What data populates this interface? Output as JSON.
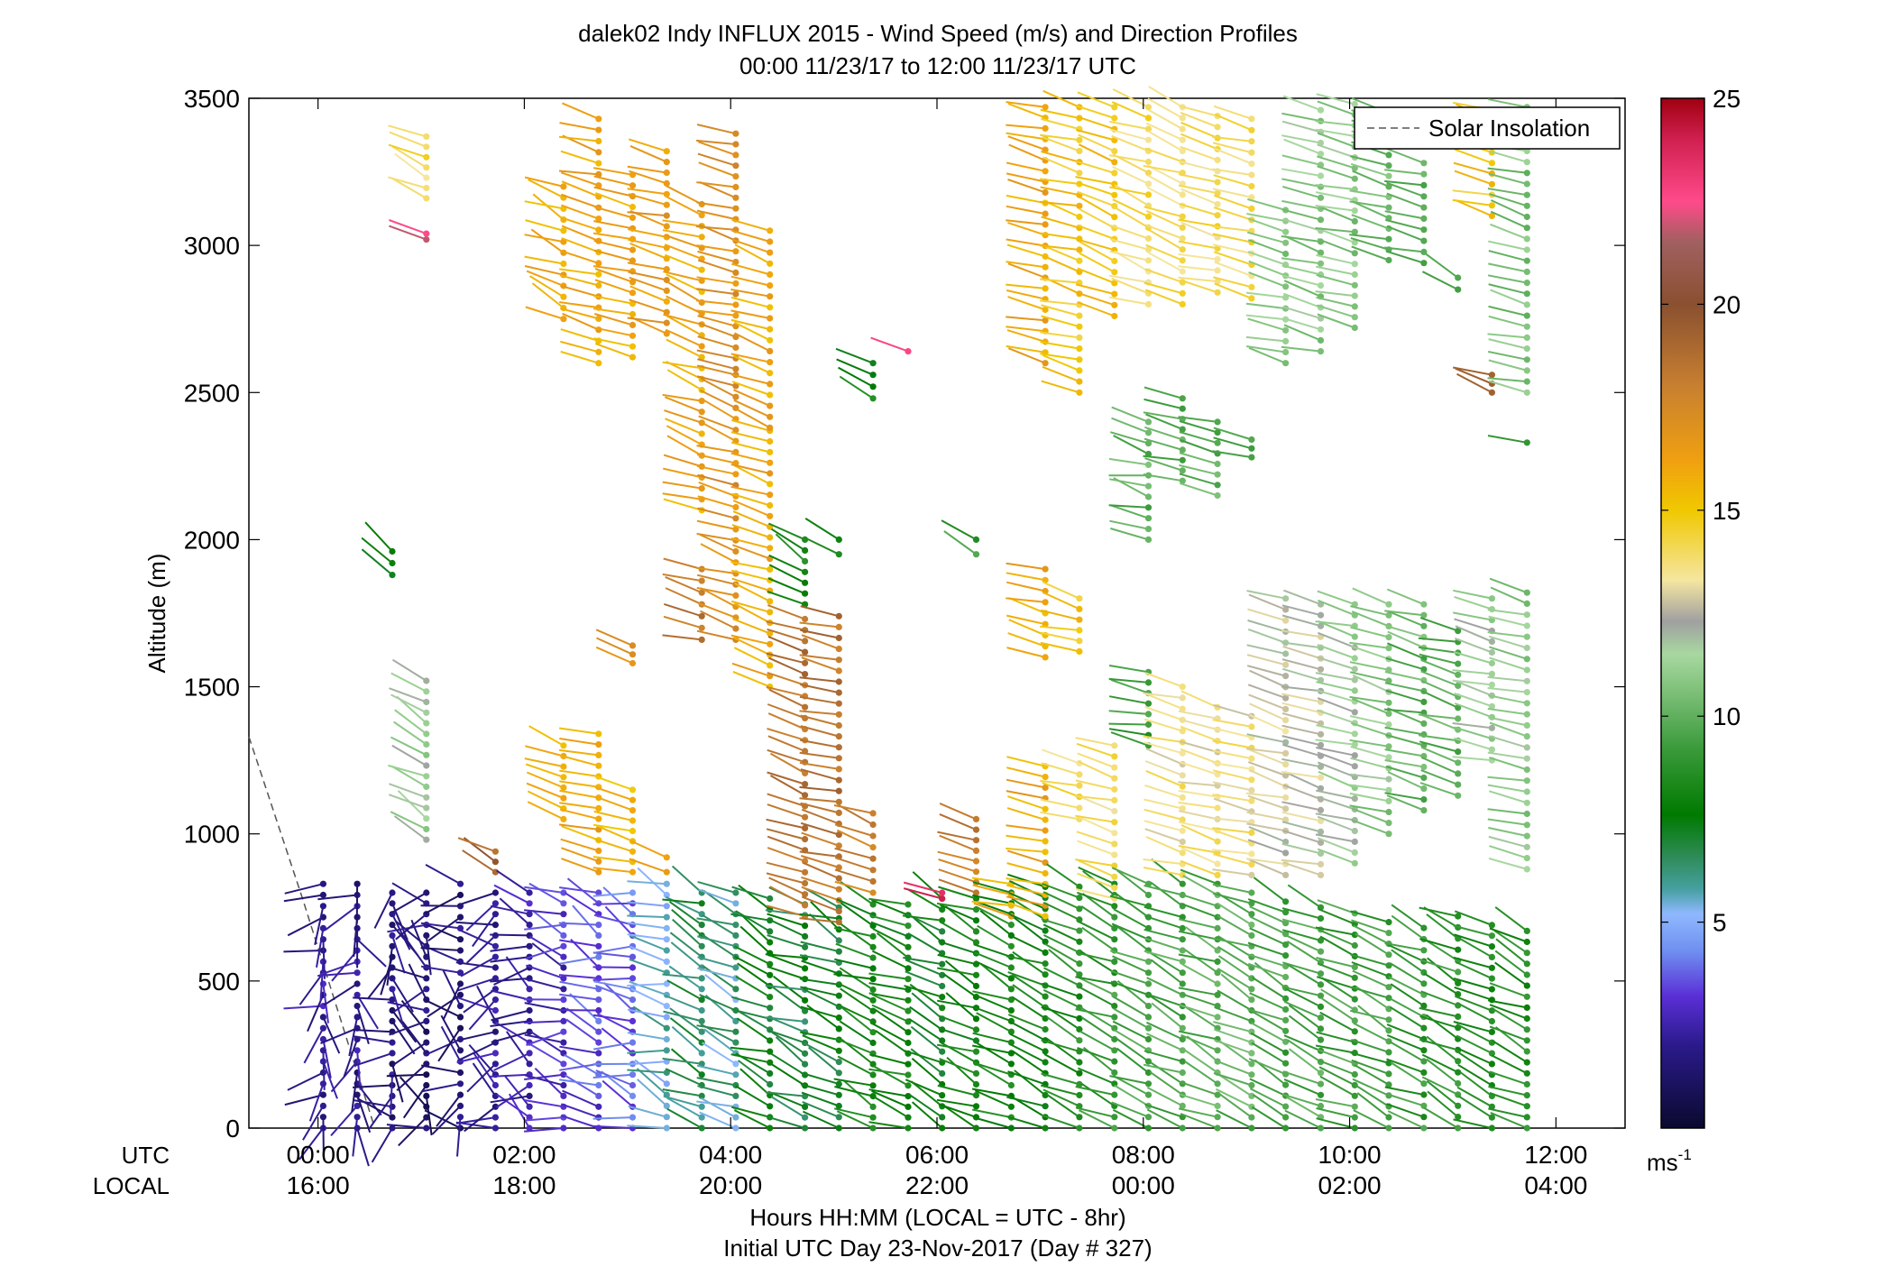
{
  "chart_data": {
    "type": "scatter",
    "title": "dalek02 Indy INFLUX 2015 - Wind Speed (m/s) and Direction Profiles",
    "subtitle": "00:00 11/23/17 to 12:00 11/23/17  UTC",
    "ylabel": "Altitude (m)",
    "xlabel": "Hours HH:MM  (LOCAL = UTC - 8hr)",
    "xlabel2": "Initial UTC Day 23-Nov-2017 (Day # 327)",
    "x_row_label_utc": "UTC",
    "x_row_label_local": "LOCAL",
    "xlim": [
      -0.67,
      12.67
    ],
    "ylim": [
      0,
      3500
    ],
    "x_ticks": [
      {
        "x": 0,
        "utc": "00:00",
        "local": "16:00"
      },
      {
        "x": 2,
        "utc": "02:00",
        "local": "18:00"
      },
      {
        "x": 4,
        "utc": "04:00",
        "local": "20:00"
      },
      {
        "x": 6,
        "utc": "06:00",
        "local": "22:00"
      },
      {
        "x": 8,
        "utc": "08:00",
        "local": "00:00"
      },
      {
        "x": 10,
        "utc": "10:00",
        "local": "02:00"
      },
      {
        "x": 12,
        "utc": "12:00",
        "local": "04:00"
      }
    ],
    "y_ticks": [
      {
        "v": 0,
        "label": "0"
      },
      {
        "v": 500,
        "label": "500"
      },
      {
        "v": 1000,
        "label": "1000"
      },
      {
        "v": 1500,
        "label": "1500"
      },
      {
        "v": 2000,
        "label": "2000"
      },
      {
        "v": 2500,
        "label": "2500"
      },
      {
        "v": 3000,
        "label": "3000"
      },
      {
        "v": 3500,
        "label": "3500"
      }
    ],
    "legend": {
      "label": "Solar Insolation",
      "position": "top-right",
      "style": "dashed",
      "color": "#555555"
    },
    "solar_insolation_line": [
      [
        -0.67,
        1330
      ],
      [
        -0.15,
        780
      ],
      [
        0.55,
        0
      ]
    ],
    "colorbar": {
      "range": [
        0,
        25
      ],
      "ticks": [
        {
          "v": 5,
          "label": "5"
        },
        {
          "v": 10,
          "label": "10"
        },
        {
          "v": 15,
          "label": "15"
        },
        {
          "v": 20,
          "label": "20"
        },
        {
          "v": 25,
          "label": "25"
        }
      ],
      "unit_label": "ms-1",
      "stops": [
        {
          "v": 0,
          "color": "#0a0a2e"
        },
        {
          "v": 2,
          "color": "#2a1a8a"
        },
        {
          "v": 3.2,
          "color": "#5a2fd6"
        },
        {
          "v": 4.3,
          "color": "#6f8ff0"
        },
        {
          "v": 5.2,
          "color": "#8fb8ff"
        },
        {
          "v": 5.8,
          "color": "#46a0a0"
        },
        {
          "v": 6.6,
          "color": "#2e8b57"
        },
        {
          "v": 7.6,
          "color": "#007a00"
        },
        {
          "v": 9.2,
          "color": "#3a9a3a"
        },
        {
          "v": 11.5,
          "color": "#a8d8a0"
        },
        {
          "v": 12.3,
          "color": "#a0a0a0"
        },
        {
          "v": 13.3,
          "color": "#f5e6a0"
        },
        {
          "v": 15,
          "color": "#f0c800"
        },
        {
          "v": 16.2,
          "color": "#f0a010"
        },
        {
          "v": 18,
          "color": "#c88030"
        },
        {
          "v": 20,
          "color": "#8a5030"
        },
        {
          "v": 21.5,
          "color": "#a06060"
        },
        {
          "v": 22.5,
          "color": "#ff4a8a"
        },
        {
          "v": 24,
          "color": "#d02050"
        },
        {
          "v": 25,
          "color": "#a00010"
        }
      ]
    },
    "profile_interval_h": 0.333,
    "altitude_step_m": 37,
    "barb_length_px": 44,
    "profiles": [
      {
        "t": 0.05,
        "segs": [
          [
            0,
            830,
            2.2,
            210,
            60
          ]
        ]
      },
      {
        "t": 0.38,
        "segs": [
          [
            0,
            830,
            2.0,
            200,
            70
          ]
        ]
      },
      {
        "t": 0.72,
        "segs": [
          [
            0,
            800,
            1.8,
            220,
            80
          ],
          [
            1880,
            1960,
            8,
            300,
            20
          ]
        ]
      },
      {
        "t": 1.05,
        "segs": [
          [
            0,
            800,
            1.5,
            250,
            90
          ],
          [
            980,
            1520,
            11.5,
            300,
            15
          ],
          [
            3020,
            3040,
            22.5,
            290,
            0
          ],
          [
            3160,
            3370,
            14,
            300,
            15
          ]
        ]
      },
      {
        "t": 1.38,
        "segs": [
          [
            0,
            830,
            1.6,
            260,
            80
          ]
        ]
      },
      {
        "t": 1.72,
        "segs": [
          [
            0,
            800,
            2.2,
            275,
            60
          ],
          [
            870,
            940,
            19,
            300,
            10
          ]
        ]
      },
      {
        "t": 2.05,
        "segs": [
          [
            0,
            800,
            2.5,
            280,
            50
          ]
        ]
      },
      {
        "t": 2.38,
        "segs": [
          [
            0,
            800,
            3.0,
            285,
            40
          ],
          [
            1050,
            1300,
            16,
            290,
            10
          ],
          [
            2750,
            3200,
            16,
            295,
            15
          ]
        ]
      },
      {
        "t": 2.72,
        "segs": [
          [
            0,
            800,
            3.4,
            290,
            30
          ],
          [
            870,
            1340,
            16,
            285,
            10
          ],
          [
            2600,
            3430,
            16,
            285,
            10
          ]
        ]
      },
      {
        "t": 3.05,
        "segs": [
          [
            0,
            800,
            3.8,
            290,
            30
          ],
          [
            870,
            1150,
            15.5,
            285,
            10
          ],
          [
            1580,
            1640,
            17,
            285,
            10
          ],
          [
            2620,
            3240,
            16,
            285,
            10
          ]
        ]
      },
      {
        "t": 3.38,
        "segs": [
          [
            0,
            830,
            5.5,
            290,
            25
          ],
          [
            870,
            920,
            16.5,
            285,
            10
          ],
          [
            2700,
            3320,
            16.5,
            285,
            10
          ]
        ]
      },
      {
        "t": 3.72,
        "segs": [
          [
            0,
            800,
            6.5,
            295,
            20
          ],
          [
            1660,
            1900,
            18.5,
            285,
            10
          ],
          [
            2100,
            3140,
            16,
            290,
            12
          ]
        ]
      },
      {
        "t": 4.05,
        "segs": [
          [
            0,
            800,
            6.0,
            295,
            20
          ],
          [
            1660,
            2560,
            17,
            290,
            12
          ],
          [
            2580,
            3380,
            17,
            285,
            10
          ]
        ]
      },
      {
        "t": 4.38,
        "segs": [
          [
            0,
            780,
            7.5,
            295,
            20
          ],
          [
            1500,
            2370,
            16,
            290,
            10
          ],
          [
            2380,
            3050,
            16,
            290,
            10
          ]
        ]
      },
      {
        "t": 4.72,
        "segs": [
          [
            0,
            760,
            7.0,
            295,
            20
          ],
          [
            720,
            1730,
            18.5,
            290,
            10
          ],
          [
            1780,
            2000,
            8,
            300,
            15
          ]
        ]
      },
      {
        "t": 5.05,
        "segs": [
          [
            0,
            750,
            7.2,
            295,
            20
          ],
          [
            700,
            1740,
            18.5,
            285,
            10
          ],
          [
            1950,
            2000,
            8,
            300,
            15
          ]
        ]
      },
      {
        "t": 5.38,
        "segs": [
          [
            0,
            760,
            8.0,
            295,
            18
          ],
          [
            800,
            1070,
            18,
            290,
            10
          ],
          [
            2480,
            2600,
            8,
            290,
            15
          ]
        ]
      },
      {
        "t": 5.72,
        "segs": [
          [
            0,
            760,
            8.0,
            295,
            18
          ],
          [
            2640,
            2650,
            23,
            290,
            0
          ]
        ]
      },
      {
        "t": 6.05,
        "segs": [
          [
            0,
            780,
            7.5,
            295,
            18
          ],
          [
            780,
            800,
            24,
            285,
            0
          ]
        ]
      },
      {
        "t": 6.38,
        "segs": [
          [
            0,
            780,
            8.0,
            295,
            18
          ],
          [
            800,
            1050,
            18,
            285,
            10
          ],
          [
            1950,
            2000,
            9,
            300,
            15
          ]
        ]
      },
      {
        "t": 6.72,
        "segs": [
          [
            0,
            800,
            8.2,
            295,
            15
          ],
          [
            720,
            830,
            16,
            285,
            10
          ]
        ]
      },
      {
        "t": 7.05,
        "segs": [
          [
            0,
            820,
            8.0,
            295,
            15
          ],
          [
            720,
            1230,
            16,
            285,
            10
          ],
          [
            1600,
            1900,
            16,
            285,
            10
          ],
          [
            2600,
            3470,
            16,
            285,
            10
          ]
        ]
      },
      {
        "t": 7.38,
        "segs": [
          [
            0,
            820,
            8.5,
            295,
            15
          ],
          [
            1050,
            1240,
            14,
            285,
            10
          ],
          [
            1620,
            1800,
            15,
            285,
            10
          ],
          [
            2500,
            3470,
            15,
            285,
            10
          ]
        ]
      },
      {
        "t": 7.72,
        "segs": [
          [
            0,
            830,
            9.0,
            295,
            15
          ],
          [
            780,
            1300,
            14,
            285,
            10
          ],
          [
            2760,
            3470,
            15,
            290,
            10
          ]
        ]
      },
      {
        "t": 8.05,
        "segs": [
          [
            0,
            830,
            9.5,
            295,
            15
          ],
          [
            1300,
            1550,
            9,
            280,
            10
          ],
          [
            2000,
            2400,
            10,
            285,
            15
          ],
          [
            2800,
            3470,
            14,
            290,
            12
          ]
        ]
      },
      {
        "t": 8.38,
        "segs": [
          [
            0,
            830,
            9.5,
            295,
            15
          ],
          [
            860,
            1500,
            13.5,
            285,
            10
          ],
          [
            2200,
            2480,
            10,
            285,
            10
          ],
          [
            2800,
            3470,
            14,
            290,
            12
          ]
        ]
      },
      {
        "t": 8.72,
        "segs": [
          [
            0,
            830,
            9.8,
            295,
            15
          ],
          [
            860,
            1430,
            13.5,
            285,
            10
          ],
          [
            2150,
            2400,
            10,
            285,
            10
          ],
          [
            2840,
            3440,
            14,
            285,
            10
          ]
        ]
      },
      {
        "t": 9.05,
        "segs": [
          [
            0,
            800,
            10,
            295,
            15
          ],
          [
            860,
            1400,
            13.5,
            285,
            10
          ],
          [
            2280,
            2340,
            10,
            285,
            10
          ],
          [
            2820,
            3430,
            14,
            285,
            10
          ]
        ]
      },
      {
        "t": 9.38,
        "segs": [
          [
            0,
            770,
            9.5,
            295,
            15
          ],
          [
            860,
            1800,
            12.5,
            285,
            10
          ],
          [
            2600,
            3120,
            11,
            285,
            10
          ]
        ]
      },
      {
        "t": 9.72,
        "segs": [
          [
            0,
            750,
            9.5,
            295,
            15
          ],
          [
            860,
            1780,
            12.5,
            285,
            10
          ],
          [
            2640,
            3460,
            11,
            285,
            10
          ]
        ]
      },
      {
        "t": 10.05,
        "segs": [
          [
            0,
            730,
            9.2,
            295,
            15
          ],
          [
            900,
            1780,
            11.5,
            285,
            10
          ],
          [
            2720,
            3480,
            11,
            285,
            10
          ]
        ]
      },
      {
        "t": 10.38,
        "segs": [
          [
            0,
            700,
            9.2,
            295,
            15
          ],
          [
            1000,
            1780,
            11,
            285,
            10
          ],
          [
            2950,
            3450,
            10.5,
            285,
            10
          ]
        ]
      },
      {
        "t": 10.72,
        "segs": [
          [
            0,
            680,
            9.0,
            295,
            15
          ],
          [
            1080,
            1780,
            10,
            285,
            10
          ],
          [
            2940,
            3280,
            10,
            285,
            10
          ]
        ]
      },
      {
        "t": 11.05,
        "segs": [
          [
            0,
            720,
            8.8,
            295,
            15
          ],
          [
            1130,
            1690,
            10,
            285,
            10
          ],
          [
            2850,
            2890,
            9,
            300,
            10
          ]
        ]
      },
      {
        "t": 11.38,
        "segs": [
          [
            0,
            690,
            8.5,
            295,
            15
          ],
          [
            1250,
            1800,
            11.5,
            285,
            10
          ],
          [
            2500,
            2560,
            20,
            290,
            10
          ],
          [
            3100,
            3460,
            15,
            285,
            10
          ]
        ]
      },
      {
        "t": 11.72,
        "segs": [
          [
            0,
            670,
            8.5,
            295,
            15
          ],
          [
            880,
            1820,
            11,
            285,
            10
          ],
          [
            2330,
            2340,
            9,
            280,
            0
          ],
          [
            2500,
            3470,
            10.5,
            285,
            10
          ]
        ]
      }
    ]
  }
}
